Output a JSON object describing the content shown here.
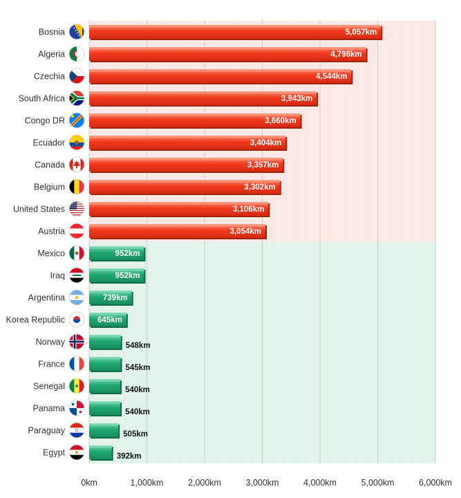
{
  "chart_data": {
    "type": "bar",
    "orientation": "horizontal",
    "title": "",
    "xlabel": "",
    "ylabel": "",
    "xlim": [
      0,
      6000
    ],
    "unit": "km",
    "grid": true,
    "ticks": [
      "0km",
      "1,000km",
      "2,000km",
      "3,000km",
      "4,000km",
      "5,000km",
      "6,000km"
    ],
    "tick_values": [
      0,
      1000,
      2000,
      3000,
      4000,
      5000,
      6000
    ],
    "categories": [
      "Bosnia",
      "Algeria",
      "Czechia",
      "South Africa",
      "Congo DR",
      "Ecuador",
      "Canada",
      "Belgium",
      "United States",
      "Austria",
      "Mexico",
      "Iraq",
      "Argentina",
      "Korea Republic",
      "Norway",
      "France",
      "Senegal",
      "Panama",
      "Paraguay",
      "Egypt"
    ],
    "values": [
      5057,
      4798,
      4544,
      3943,
      3660,
      3404,
      3357,
      3302,
      3106,
      3054,
      952,
      952,
      739,
      645,
      548,
      545,
      540,
      540,
      505,
      392
    ],
    "value_labels": [
      "5,057km",
      "4,798km",
      "4,544km",
      "3,943km",
      "3,660km",
      "3,404km",
      "3,357km",
      "3,302km",
      "3,106km",
      "3,054km",
      "952km",
      "952km",
      "739km",
      "645km",
      "548km",
      "545km",
      "540km",
      "540km",
      "505km",
      "392km"
    ],
    "groups": [
      "red",
      "red",
      "red",
      "red",
      "red",
      "red",
      "red",
      "red",
      "red",
      "red",
      "green",
      "green",
      "green",
      "green",
      "green",
      "green",
      "green",
      "green",
      "green",
      "green"
    ],
    "flags": [
      "bosnia-flag-icon",
      "algeria-flag-icon",
      "czechia-flag-icon",
      "south-africa-flag-icon",
      "congo-dr-flag-icon",
      "ecuador-flag-icon",
      "canada-flag-icon",
      "belgium-flag-icon",
      "united-states-flag-icon",
      "austria-flag-icon",
      "mexico-flag-icon",
      "iraq-flag-icon",
      "argentina-flag-icon",
      "korea-republic-flag-icon",
      "norway-flag-icon",
      "france-flag-icon",
      "senegal-flag-icon",
      "panama-flag-icon",
      "paraguay-flag-icon",
      "egypt-flag-icon"
    ],
    "colors": {
      "red_top": "#ff7a5c",
      "red_mid": "#f23a1e",
      "red_bottom": "#d42a12",
      "red_shadow": "#a8200c",
      "red_band": "#fbe9e6",
      "green_top": "#5fd3a6",
      "green_mid": "#22a873",
      "green_bottom": "#178c5d",
      "green_shadow": "#0f6b46",
      "green_band": "#e2f3ec",
      "grid": "#d9d9d9"
    }
  }
}
